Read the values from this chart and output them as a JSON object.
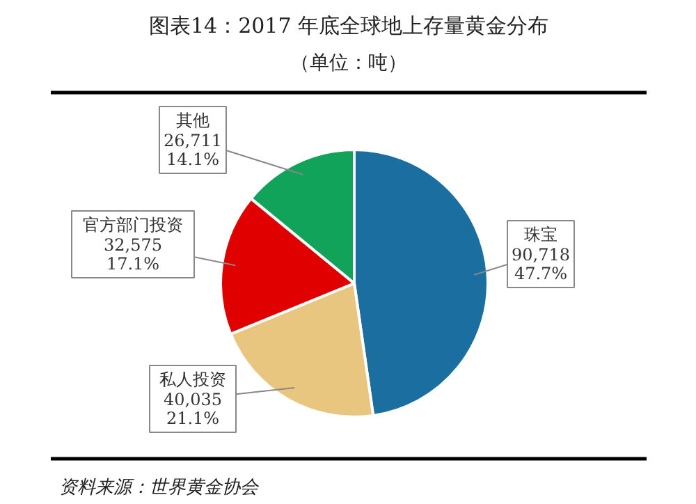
{
  "chart_data": {
    "type": "pie",
    "title": "图表14：2017 年底全球地上存量黄金分布",
    "subtitle": "（单位：吨）",
    "categories": [
      "珠宝",
      "私人投资",
      "官方部门投资",
      "其他"
    ],
    "values": [
      90718,
      40035,
      32575,
      26711
    ],
    "colors": [
      "#1a6fa0",
      "#e8c680",
      "#e00000",
      "#12a35a"
    ],
    "value_labels": [
      "90,718\n47.7%",
      "40,035\n21.1%",
      "32,575\n17.1%",
      "26,711\n14.1%"
    ],
    "annotations": [
      "资料来源：世界黄金协会"
    ]
  }
}
